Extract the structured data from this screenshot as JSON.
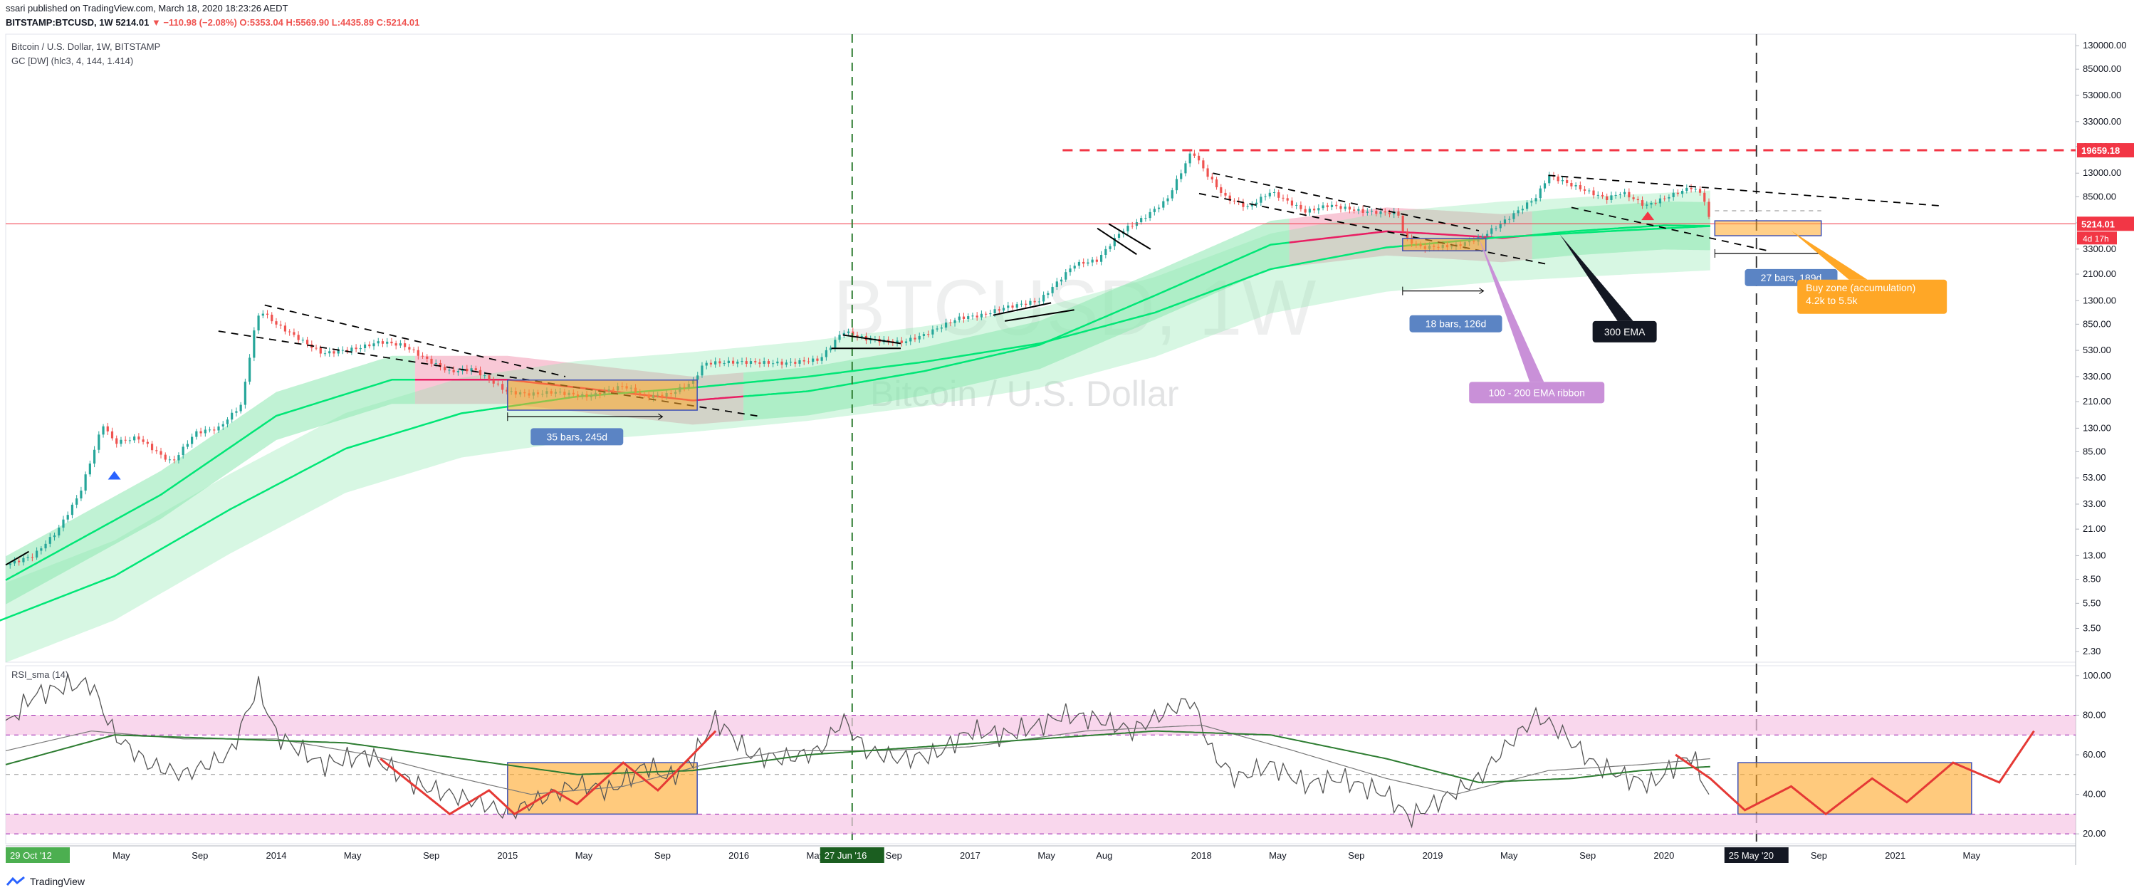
{
  "header": {
    "publish_line": "ssari published on TradingView.com, March 18, 2020 18:23:26 AEDT",
    "symbol": "BITSTAMP:BTCUSD, 1W",
    "last": "5214.01",
    "change": "▼ −110.98 (−2.08%)",
    "ohlc": "O:5353.04 H:5569.90 L:4435.89 C:5214.01"
  },
  "legend": {
    "title": "Bitcoin / U.S. Dollar, 1W, BITSTAMP",
    "indicator": "GC [DW] (hlc3, 4, 144, 1.414)",
    "rsi": "RSI_sma (14)"
  },
  "watermark": {
    "symbol": "BTCUSD, 1W",
    "name": "Bitcoin / U.S. Dollar"
  },
  "footer": {
    "brand": "TradingView"
  },
  "colors": {
    "up": "#26a69a",
    "down": "#ef5350",
    "band_green": "#8ce8b0",
    "band_red": "#f29ab4",
    "ema": "#00e676",
    "orange": "#ffa726",
    "blue_label": "#5b84c4",
    "purple": "#c990d8",
    "rsi_line": "#555555",
    "rsi_signal": "#2e7d32"
  },
  "chart_data": [
    {
      "type": "line",
      "panel": "price",
      "y_scale": "log",
      "y_ticks": [
        "130000.00",
        "85000.00",
        "53000.00",
        "33000.00",
        "21000.00",
        "13000.00",
        "8500.00",
        "5300.00",
        "3300.00",
        "2100.00",
        "1300.00",
        "850.00",
        "530.00",
        "330.00",
        "210.00",
        "130.00",
        "85.00",
        "53.00",
        "33.00",
        "21.00",
        "13.00",
        "8.50",
        "5.50",
        "3.50",
        "2.30"
      ],
      "x_ticks": [
        {
          "label": "29 Oct '12",
          "t": 2012.83,
          "highlight": "green"
        },
        {
          "label": "May",
          "t": 2013.33
        },
        {
          "label": "Sep",
          "t": 2013.67
        },
        {
          "label": "2014",
          "t": 2014.0
        },
        {
          "label": "May",
          "t": 2014.33
        },
        {
          "label": "Sep",
          "t": 2014.67
        },
        {
          "label": "2015",
          "t": 2015.0
        },
        {
          "label": "May",
          "t": 2015.33
        },
        {
          "label": "Sep",
          "t": 2015.67
        },
        {
          "label": "2016",
          "t": 2016.0
        },
        {
          "label": "May",
          "t": 2016.33
        },
        {
          "label": "27 Jun '16",
          "t": 2016.49,
          "highlight": "darkgreen"
        },
        {
          "label": "Sep",
          "t": 2016.67
        },
        {
          "label": "2017",
          "t": 2017.0
        },
        {
          "label": "May",
          "t": 2017.33
        },
        {
          "label": "Aug",
          "t": 2017.58
        },
        {
          "label": "2018",
          "t": 2018.0
        },
        {
          "label": "May",
          "t": 2018.33
        },
        {
          "label": "Sep",
          "t": 2018.67
        },
        {
          "label": "2019",
          "t": 2019.0
        },
        {
          "label": "May",
          "t": 2019.33
        },
        {
          "label": "Sep",
          "t": 2019.67
        },
        {
          "label": "2020",
          "t": 2020.0
        },
        {
          "label": "25 May '20",
          "t": 2020.4,
          "highlight": "black"
        },
        {
          "label": "Sep",
          "t": 2020.67
        },
        {
          "label": "2021",
          "t": 2021.0
        },
        {
          "label": "May",
          "t": 2021.33
        }
      ],
      "price_series": [
        [
          2012.83,
          11
        ],
        [
          2012.95,
          13
        ],
        [
          2013.05,
          20
        ],
        [
          2013.15,
          40
        ],
        [
          2013.25,
          140
        ],
        [
          2013.3,
          100
        ],
        [
          2013.4,
          110
        ],
        [
          2013.5,
          80
        ],
        [
          2013.55,
          70
        ],
        [
          2013.65,
          120
        ],
        [
          2013.75,
          130
        ],
        [
          2013.85,
          200
        ],
        [
          2013.9,
          700
        ],
        [
          2013.93,
          1100
        ],
        [
          2014.0,
          850
        ],
        [
          2014.1,
          650
        ],
        [
          2014.2,
          500
        ],
        [
          2014.35,
          550
        ],
        [
          2014.45,
          620
        ],
        [
          2014.55,
          580
        ],
        [
          2014.65,
          450
        ],
        [
          2014.75,
          360
        ],
        [
          2014.85,
          380
        ],
        [
          2015.0,
          250
        ],
        [
          2015.1,
          240
        ],
        [
          2015.2,
          250
        ],
        [
          2015.35,
          230
        ],
        [
          2015.5,
          280
        ],
        [
          2015.6,
          230
        ],
        [
          2015.7,
          240
        ],
        [
          2015.8,
          300
        ],
        [
          2015.85,
          420
        ],
        [
          2016.0,
          430
        ],
        [
          2016.2,
          420
        ],
        [
          2016.35,
          450
        ],
        [
          2016.45,
          750
        ],
        [
          2016.55,
          650
        ],
        [
          2016.7,
          610
        ],
        [
          2016.8,
          700
        ],
        [
          2016.95,
          950
        ],
        [
          2017.05,
          1000
        ],
        [
          2017.15,
          1150
        ],
        [
          2017.3,
          1300
        ],
        [
          2017.45,
          2500
        ],
        [
          2017.55,
          2700
        ],
        [
          2017.65,
          4500
        ],
        [
          2017.75,
          5800
        ],
        [
          2017.85,
          8000
        ],
        [
          2017.96,
          19600
        ],
        [
          2018.02,
          13000
        ],
        [
          2018.1,
          8500
        ],
        [
          2018.2,
          7000
        ],
        [
          2018.3,
          9300
        ],
        [
          2018.45,
          6500
        ],
        [
          2018.55,
          7300
        ],
        [
          2018.7,
          6500
        ],
        [
          2018.85,
          6300
        ],
        [
          2018.88,
          4000
        ],
        [
          2018.95,
          3400
        ],
        [
          2019.1,
          3500
        ],
        [
          2019.2,
          4000
        ],
        [
          2019.3,
          5300
        ],
        [
          2019.45,
          8500
        ],
        [
          2019.5,
          12500
        ],
        [
          2019.6,
          10500
        ],
        [
          2019.75,
          8200
        ],
        [
          2019.82,
          9200
        ],
        [
          2019.92,
          7200
        ],
        [
          2020.05,
          9000
        ],
        [
          2020.12,
          10100
        ],
        [
          2020.17,
          8700
        ],
        [
          2020.2,
          5214
        ]
      ],
      "ema_300": [
        [
          2012.8,
          4
        ],
        [
          2013.3,
          9
        ],
        [
          2013.8,
          30
        ],
        [
          2014.3,
          90
        ],
        [
          2014.8,
          170
        ],
        [
          2015.3,
          230
        ],
        [
          2015.8,
          270
        ],
        [
          2016.3,
          330
        ],
        [
          2016.8,
          430
        ],
        [
          2017.3,
          600
        ],
        [
          2017.8,
          1050
        ],
        [
          2018.3,
          2300
        ],
        [
          2018.8,
          3400
        ],
        [
          2019.3,
          4100
        ],
        [
          2019.8,
          4600
        ],
        [
          2020.2,
          5000
        ]
      ],
      "ribbon_100_200": [
        [
          2012.8,
          12
        ],
        [
          2013.5,
          60
        ],
        [
          2014.0,
          250
        ],
        [
          2014.5,
          480
        ],
        [
          2015.0,
          480
        ],
        [
          2015.5,
          380
        ],
        [
          2015.8,
          330
        ],
        [
          2016.3,
          390
        ],
        [
          2016.8,
          560
        ],
        [
          2017.3,
          900
        ],
        [
          2017.8,
          2200
        ],
        [
          2018.3,
          5500
        ],
        [
          2018.8,
          7000
        ],
        [
          2019.0,
          6700
        ],
        [
          2019.3,
          6200
        ],
        [
          2019.6,
          7000
        ],
        [
          2020.0,
          7800
        ],
        [
          2020.2,
          7700
        ]
      ],
      "horizontal_lines": [
        {
          "label": "19659.18",
          "value": 19659.18,
          "color": "red"
        },
        {
          "label": "5214.01",
          "value": 5214.01,
          "color": "red",
          "countdown": "4d 17h"
        }
      ],
      "annotations": [
        {
          "text": "35 bars, 245d",
          "t": 2015.3,
          "value": 130
        },
        {
          "text": "18 bars, 126d",
          "t": 2019.1,
          "value": 1000
        },
        {
          "text": "27 bars, 189d",
          "t": 2020.55,
          "value": 2300
        },
        {
          "text": "100 - 200 EMA ribbon",
          "t": 2019.45,
          "value": 300
        },
        {
          "text": "300 EMA",
          "t": 2019.83,
          "value": 900
        },
        {
          "text": "Buy zone (accumulation)",
          "text2": "4.2k to 5.5k",
          "t": 2020.9,
          "value": 1900
        }
      ],
      "vertical_lines": [
        {
          "t": 2016.49,
          "style": "green-dash"
        },
        {
          "t": 2020.4,
          "style": "black-dash"
        }
      ]
    },
    {
      "type": "line",
      "panel": "rsi",
      "title": "RSI_sma (14)",
      "y_ticks": [
        "100.00",
        "80.00",
        "60.00",
        "40.00",
        "20.00"
      ],
      "ylim": [
        15,
        105
      ],
      "levels": [
        80,
        70,
        50,
        30,
        20
      ],
      "rsi": [
        [
          2012.83,
          75
        ],
        [
          2012.95,
          90
        ],
        [
          2013.1,
          95
        ],
        [
          2013.2,
          96
        ],
        [
          2013.3,
          70
        ],
        [
          2013.45,
          55
        ],
        [
          2013.6,
          50
        ],
        [
          2013.8,
          60
        ],
        [
          2013.92,
          95
        ],
        [
          2014.0,
          70
        ],
        [
          2014.2,
          55
        ],
        [
          2014.4,
          60
        ],
        [
          2014.6,
          45
        ],
        [
          2014.75,
          40
        ],
        [
          2014.9,
          35
        ],
        [
          2015.0,
          30
        ],
        [
          2015.15,
          38
        ],
        [
          2015.3,
          45
        ],
        [
          2015.45,
          42
        ],
        [
          2015.6,
          55
        ],
        [
          2015.7,
          48
        ],
        [
          2015.8,
          58
        ],
        [
          2015.9,
          78
        ],
        [
          2016.05,
          60
        ],
        [
          2016.2,
          58
        ],
        [
          2016.35,
          62
        ],
        [
          2016.45,
          78
        ],
        [
          2016.55,
          62
        ],
        [
          2016.7,
          58
        ],
        [
          2016.85,
          60
        ],
        [
          2017.0,
          72
        ],
        [
          2017.15,
          70
        ],
        [
          2017.3,
          75
        ],
        [
          2017.4,
          80
        ],
        [
          2017.55,
          78
        ],
        [
          2017.7,
          72
        ],
        [
          2017.85,
          82
        ],
        [
          2017.96,
          88
        ],
        [
          2018.05,
          60
        ],
        [
          2018.15,
          48
        ],
        [
          2018.3,
          55
        ],
        [
          2018.45,
          45
        ],
        [
          2018.6,
          48
        ],
        [
          2018.8,
          40
        ],
        [
          2018.9,
          28
        ],
        [
          2019.05,
          38
        ],
        [
          2019.2,
          48
        ],
        [
          2019.3,
          62
        ],
        [
          2019.45,
          80
        ],
        [
          2019.55,
          72
        ],
        [
          2019.7,
          55
        ],
        [
          2019.85,
          48
        ],
        [
          2019.95,
          45
        ],
        [
          2020.05,
          55
        ],
        [
          2020.12,
          60
        ],
        [
          2020.2,
          38
        ]
      ],
      "rsi_sma": [
        [
          2012.83,
          62
        ],
        [
          2013.2,
          72
        ],
        [
          2013.6,
          68
        ],
        [
          2014.0,
          68
        ],
        [
          2014.4,
          60
        ],
        [
          2014.8,
          48
        ],
        [
          2015.1,
          40
        ],
        [
          2015.5,
          44
        ],
        [
          2015.85,
          55
        ],
        [
          2016.2,
          62
        ],
        [
          2016.6,
          62
        ],
        [
          2017.0,
          64
        ],
        [
          2017.5,
          72
        ],
        [
          2018.0,
          75
        ],
        [
          2018.4,
          62
        ],
        [
          2018.8,
          48
        ],
        [
          2019.1,
          40
        ],
        [
          2019.5,
          52
        ],
        [
          2019.9,
          55
        ],
        [
          2020.2,
          58
        ]
      ],
      "rsi_sma_long": [
        [
          2012.83,
          55
        ],
        [
          2013.3,
          70
        ],
        [
          2013.8,
          68
        ],
        [
          2014.3,
          66
        ],
        [
          2014.8,
          58
        ],
        [
          2015.3,
          50
        ],
        [
          2015.8,
          52
        ],
        [
          2016.3,
          60
        ],
        [
          2016.8,
          64
        ],
        [
          2017.3,
          68
        ],
        [
          2017.8,
          72
        ],
        [
          2018.3,
          70
        ],
        [
          2018.8,
          58
        ],
        [
          2019.2,
          46
        ],
        [
          2019.6,
          48
        ],
        [
          2019.9,
          52
        ],
        [
          2020.2,
          54
        ]
      ],
      "overlay_zones": [
        {
          "t0": 2015.0,
          "t1": 2015.82,
          "v0": 30,
          "v1": 56
        },
        {
          "t0": 2020.32,
          "t1": 2021.33,
          "v0": 30,
          "v1": 56
        }
      ],
      "zigzags": [
        [
          [
            2014.45,
            58
          ],
          [
            2014.75,
            30
          ],
          [
            2014.92,
            42
          ],
          [
            2015.03,
            30
          ],
          [
            2015.2,
            42
          ],
          [
            2015.3,
            35
          ],
          [
            2015.5,
            56
          ],
          [
            2015.65,
            42
          ],
          [
            2015.9,
            72
          ]
        ],
        [
          [
            2020.05,
            60
          ],
          [
            2020.2,
            48
          ],
          [
            2020.35,
            32
          ],
          [
            2020.55,
            44
          ],
          [
            2020.7,
            30
          ],
          [
            2020.9,
            48
          ],
          [
            2021.05,
            36
          ],
          [
            2021.25,
            56
          ],
          [
            2021.45,
            46
          ],
          [
            2021.6,
            72
          ]
        ]
      ]
    }
  ]
}
